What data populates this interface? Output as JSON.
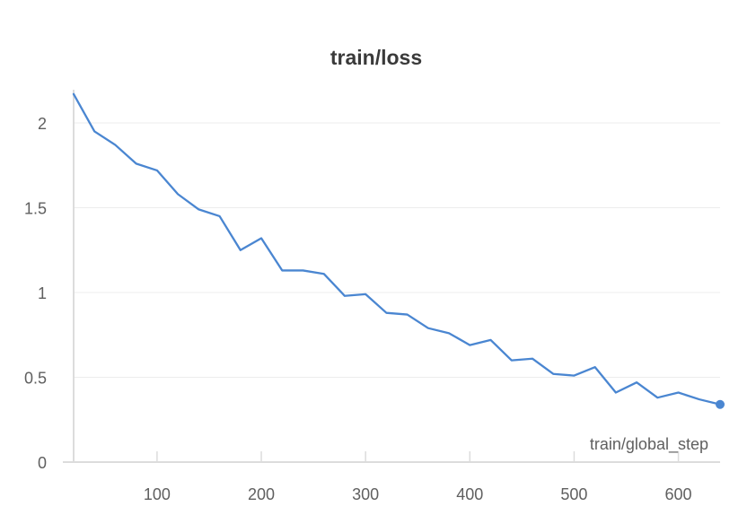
{
  "chart_data": {
    "type": "line",
    "title": "train/loss",
    "xlabel": "train/global_step",
    "ylabel": "",
    "xlim": [
      20,
      640
    ],
    "ylim": [
      0,
      2.2
    ],
    "x_ticks": [
      100,
      200,
      300,
      400,
      500,
      600
    ],
    "y_ticks": [
      0,
      0.5,
      1,
      1.5,
      2
    ],
    "x_tick_labels": [
      "100",
      "200",
      "300",
      "400",
      "500",
      "600"
    ],
    "y_tick_labels": [
      "0",
      "0.5",
      "1",
      "1.5",
      "2"
    ],
    "grid": true,
    "colors": {
      "series": "#4a86d1",
      "grid": "#ececec",
      "axis": "#dcdcdc"
    },
    "series": [
      {
        "x": [
          20,
          40,
          60,
          80,
          100,
          120,
          140,
          160,
          180,
          200,
          220,
          240,
          260,
          280,
          300,
          320,
          340,
          360,
          380,
          400,
          420,
          440,
          460,
          480,
          500,
          520,
          540,
          560,
          580,
          600,
          620,
          640
        ],
        "values": [
          2.17,
          1.95,
          1.87,
          1.76,
          1.72,
          1.58,
          1.49,
          1.45,
          1.25,
          1.32,
          1.13,
          1.13,
          1.11,
          0.98,
          0.99,
          0.88,
          0.87,
          0.79,
          0.76,
          0.69,
          0.72,
          0.6,
          0.61,
          0.52,
          0.51,
          0.56,
          0.41,
          0.47,
          0.38,
          0.41,
          0.37,
          0.34
        ]
      }
    ]
  }
}
